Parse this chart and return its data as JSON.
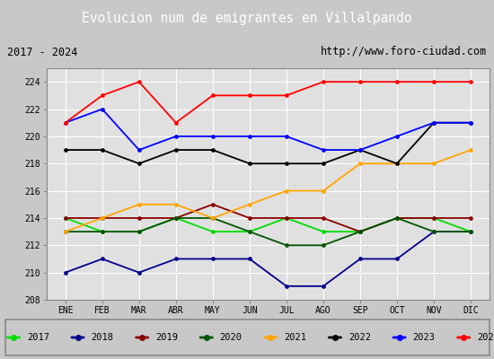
{
  "title": "Evolucion num de emigrantes en Villalpando",
  "subtitle_left": "2017 - 2024",
  "subtitle_right": "http://www.foro-ciudad.com",
  "months": [
    "ENE",
    "FEB",
    "MAR",
    "ABR",
    "MAY",
    "JUN",
    "JUL",
    "AGO",
    "SEP",
    "OCT",
    "NOV",
    "DIC"
  ],
  "series": {
    "2017": {
      "color": "#00dd00",
      "data": [
        214,
        213,
        213,
        214,
        213,
        213,
        214,
        213,
        213,
        214,
        214,
        213
      ]
    },
    "2018": {
      "color": "#00008b",
      "data": [
        210,
        211,
        210,
        211,
        211,
        211,
        209,
        209,
        211,
        211,
        213,
        213
      ]
    },
    "2019": {
      "color": "#8b0000",
      "data": [
        214,
        214,
        214,
        214,
        215,
        214,
        214,
        214,
        213,
        214,
        214,
        214
      ]
    },
    "2020": {
      "color": "#005500",
      "data": [
        213,
        213,
        213,
        214,
        214,
        213,
        212,
        212,
        213,
        214,
        213,
        213
      ]
    },
    "2021": {
      "color": "#ffa500",
      "data": [
        213,
        214,
        215,
        215,
        214,
        215,
        216,
        216,
        218,
        218,
        218,
        219
      ]
    },
    "2022": {
      "color": "#000000",
      "data": [
        219,
        219,
        218,
        219,
        219,
        218,
        218,
        218,
        219,
        218,
        221,
        221
      ]
    },
    "2023": {
      "color": "#0000ff",
      "data": [
        221,
        222,
        219,
        220,
        220,
        220,
        220,
        219,
        219,
        220,
        221,
        221
      ]
    },
    "2024": {
      "color": "#ff0000",
      "data": [
        221,
        223,
        224,
        221,
        223,
        223,
        223,
        224,
        224,
        224,
        224,
        224
      ]
    }
  },
  "ylim": [
    208,
    225
  ],
  "yticks": [
    208,
    210,
    212,
    214,
    216,
    218,
    220,
    222,
    224
  ],
  "bg_color": "#c8c8c8",
  "plot_bg_color": "#e0e0e0",
  "title_bg_color": "#4472c4",
  "title_text_color": "#ffffff",
  "header_bg_color": "#c8c8c8",
  "grid_color": "#ffffff",
  "legend_bg_color": "#f0f0f0"
}
